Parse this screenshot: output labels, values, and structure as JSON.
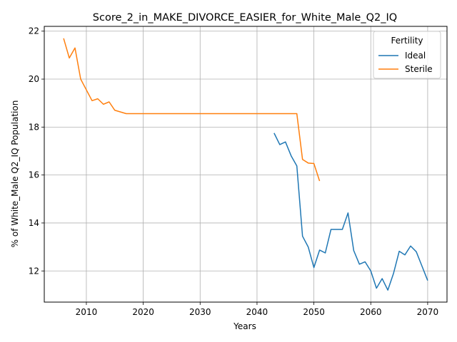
{
  "chart_data": {
    "type": "line",
    "title": "Score_2_in_MAKE_DIVORCE_EASIER_for_White_Male_Q2_IQ",
    "xlabel": "Years",
    "ylabel": "% of White_Male Q2_IQ Population",
    "xlim": [
      2002.6,
      2073.4
    ],
    "ylim": [
      10.7,
      22.2
    ],
    "xticks": [
      2010,
      2020,
      2030,
      2040,
      2050,
      2060,
      2070
    ],
    "yticks": [
      12,
      14,
      16,
      18,
      20,
      22
    ],
    "grid": true,
    "legend": {
      "title": "Fertility",
      "placement": "top-right"
    },
    "series": [
      {
        "name": "Ideal",
        "color": "#1f77b4",
        "x": [
          2043,
          2044,
          2045,
          2046,
          2047,
          2048,
          2049,
          2050,
          2051,
          2052,
          2053,
          2054,
          2055,
          2056,
          2057,
          2058,
          2059,
          2060,
          2061,
          2062,
          2063,
          2064,
          2065,
          2066,
          2067,
          2068,
          2069,
          2070
        ],
        "y": [
          17.75,
          17.27,
          17.38,
          16.8,
          16.38,
          13.45,
          13.0,
          12.14,
          12.87,
          12.75,
          13.73,
          13.73,
          13.73,
          14.42,
          12.85,
          12.28,
          12.38,
          12.0,
          11.28,
          11.68,
          11.2,
          11.9,
          12.82,
          12.67,
          13.04,
          12.8,
          12.2,
          11.6
        ]
      },
      {
        "name": "Sterile",
        "color": "#ff7f0e",
        "x": [
          2006,
          2007,
          2008,
          2009,
          2010,
          2011,
          2012,
          2013,
          2014,
          2015,
          2016,
          2017,
          2018,
          2020,
          2025,
          2030,
          2035,
          2040,
          2045,
          2047,
          2048,
          2049,
          2050,
          2051
        ],
        "y": [
          21.7,
          20.88,
          21.3,
          20.0,
          19.55,
          19.1,
          19.18,
          18.95,
          19.05,
          18.7,
          18.63,
          18.56,
          18.56,
          18.56,
          18.56,
          18.56,
          18.56,
          18.56,
          18.56,
          18.56,
          16.65,
          16.5,
          16.48,
          15.75
        ]
      }
    ]
  }
}
